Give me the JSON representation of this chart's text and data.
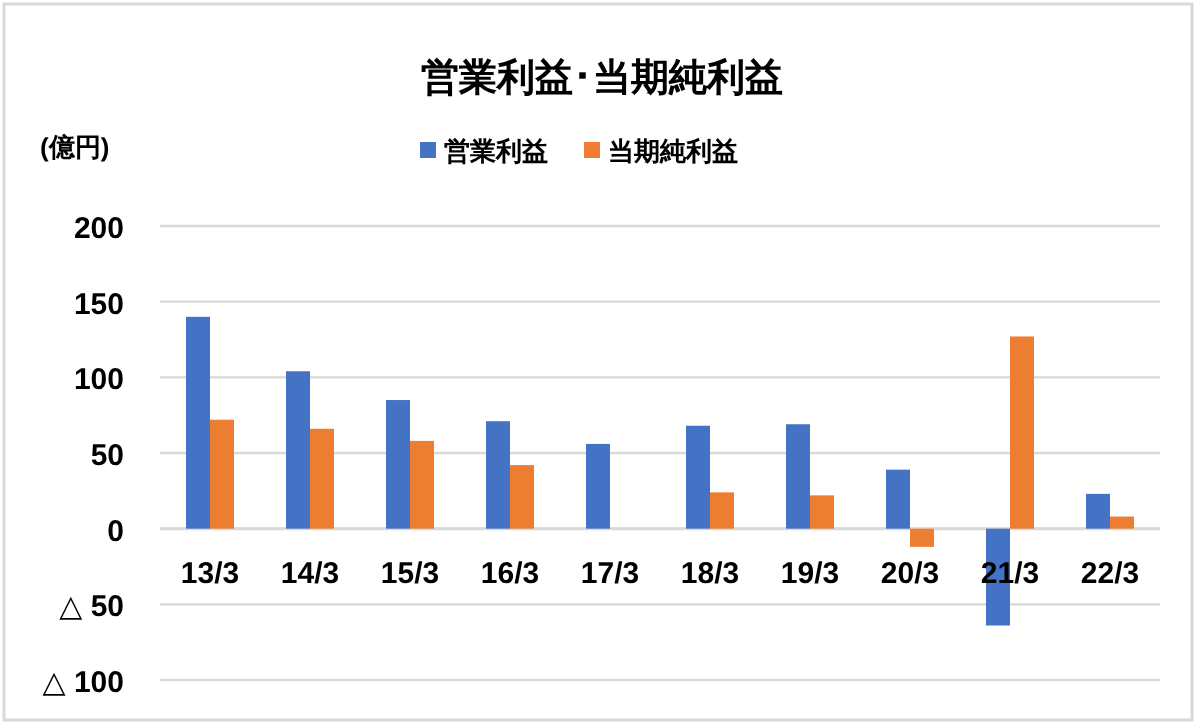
{
  "chart_data": {
    "type": "bar",
    "title": "営業利益･当期純利益",
    "ylabel": "(億円)",
    "categories": [
      "13/3",
      "14/3",
      "15/3",
      "16/3",
      "17/3",
      "18/3",
      "19/3",
      "20/3",
      "21/3",
      "22/3"
    ],
    "series": [
      {
        "name": "営業利益",
        "color": "#4472c4",
        "values": [
          140,
          104,
          85,
          71,
          56,
          68,
          69,
          39,
          -64,
          23
        ]
      },
      {
        "name": "当期純利益",
        "color": "#ed7d31",
        "values": [
          72,
          66,
          58,
          42,
          null,
          24,
          22,
          -12,
          127,
          8
        ]
      }
    ],
    "ylim": [
      -100,
      200
    ],
    "yticks": [
      {
        "value": -100,
        "label": "△ 100"
      },
      {
        "value": -50,
        "label": "△ 50"
      },
      0,
      50,
      100,
      150,
      200
    ],
    "grid": "y",
    "legend": "top"
  }
}
